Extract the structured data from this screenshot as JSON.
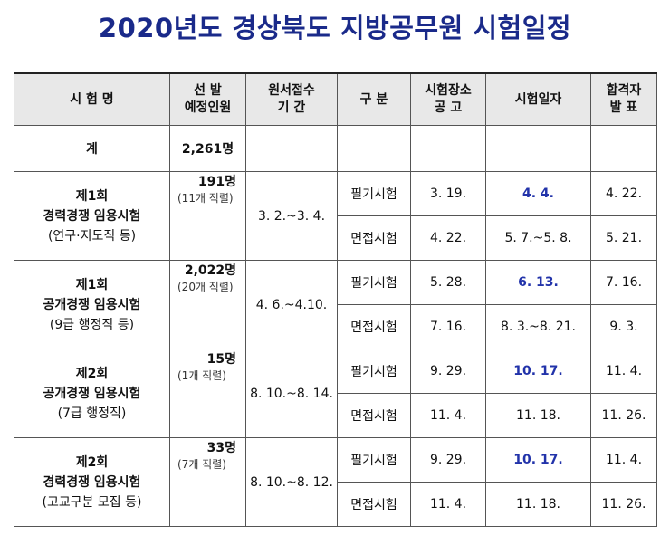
{
  "title": "2020년도 경상북도 지방공무원 시험일정",
  "headers": {
    "exam_name": "시 험 명",
    "selection_l1": "선 발",
    "selection_l2": "예정인원",
    "application_l1": "원서접수",
    "application_l2": "기 간",
    "category": "구 분",
    "venue_l1": "시험장소",
    "venue_l2": "공 고",
    "exam_date": "시험일자",
    "result_l1": "합격자",
    "result_l2": "발 표"
  },
  "total": {
    "label": "계",
    "count": "2,261명"
  },
  "exams": [
    {
      "name_l1": "제1회",
      "name_l2": "경력경쟁 임용시험",
      "name_l3": "(연구·지도직 등)",
      "count": "191명",
      "count_sub": "(11개 직렬)",
      "application": "3. 2.~3. 4.",
      "stages": [
        {
          "category": "필기시험",
          "venue": "3. 19.",
          "date": "4. 4.",
          "result": "4. 22."
        },
        {
          "category": "면접시험",
          "venue": "4. 22.",
          "date": "5. 7.~5. 8.",
          "result": "5. 21."
        }
      ]
    },
    {
      "name_l1": "제1회",
      "name_l2": "공개경쟁 임용시험",
      "name_l3": "(9급 행정직 등)",
      "count": "2,022명",
      "count_sub": "(20개 직렬)",
      "application": "4. 6.~4.10.",
      "stages": [
        {
          "category": "필기시험",
          "venue": "5. 28.",
          "date": "6. 13.",
          "result": "7. 16."
        },
        {
          "category": "면접시험",
          "venue": "7. 16.",
          "date": "8. 3.~8. 21.",
          "result": "9. 3."
        }
      ]
    },
    {
      "name_l1": "제2회",
      "name_l2": "공개경쟁 임용시험",
      "name_l3": "(7급 행정직)",
      "count": "15명",
      "count_sub": "(1개 직렬)",
      "application": "8. 10.~8. 14.",
      "stages": [
        {
          "category": "필기시험",
          "venue": "9. 29.",
          "date": "10. 17.",
          "result": "11. 4."
        },
        {
          "category": "면접시험",
          "venue": "11. 4.",
          "date": "11. 18.",
          "result": "11. 26."
        }
      ]
    },
    {
      "name_l1": "제2회",
      "name_l2": "경력경쟁 임용시험",
      "name_l3": "(고교구분 모집 등)",
      "count": "33명",
      "count_sub": "(7개 직렬)",
      "application": "8. 10.~8. 12.",
      "stages": [
        {
          "category": "필기시험",
          "venue": "9. 29.",
          "date": "10. 17.",
          "result": "11. 4."
        },
        {
          "category": "면접시험",
          "venue": "11. 4.",
          "date": "11. 18.",
          "result": "11. 26."
        }
      ]
    }
  ]
}
